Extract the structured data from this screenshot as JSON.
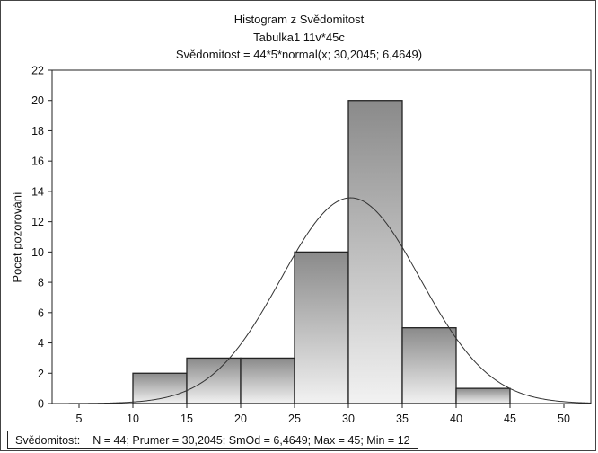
{
  "chart_data": {
    "type": "bar",
    "title": "Histogram z Svědomitost",
    "subtitle": "Tabulka1 11v*45c",
    "formula": "Svědomitost = 44*5*normal(x; 30,2045; 6,4649)",
    "xlabel": "",
    "ylabel": "Pocet pozorování",
    "xlim": [
      2.5,
      52.5
    ],
    "ylim": [
      0,
      22
    ],
    "x_ticks": [
      "5",
      "10",
      "15",
      "20",
      "25",
      "30",
      "35",
      "40",
      "45",
      "50"
    ],
    "y_ticks": [
      "0",
      "2",
      "4",
      "6",
      "8",
      "10",
      "12",
      "14",
      "16",
      "18",
      "20",
      "22"
    ],
    "bins": [
      {
        "from": 10,
        "to": 15,
        "count": 2
      },
      {
        "from": 15,
        "to": 20,
        "count": 3
      },
      {
        "from": 20,
        "to": 25,
        "count": 3
      },
      {
        "from": 25,
        "to": 30,
        "count": 10
      },
      {
        "from": 30,
        "to": 35,
        "count": 20
      },
      {
        "from": 35,
        "to": 40,
        "count": 5
      },
      {
        "from": 40,
        "to": 45,
        "count": 1
      }
    ],
    "normal_fit": {
      "n": 44,
      "bin_width": 5,
      "mean": 30.2045,
      "sd": 6.4649
    },
    "grid": false,
    "colors": {
      "bar_light": "#f2f2f2",
      "bar_dark": "#8a8a8a",
      "bar_stroke": "#222222",
      "curve": "#333333"
    }
  },
  "stats": {
    "variable": "Svědomitost:",
    "values": "N = 44; Prumer = 30,2045; SmOd = 6,4649; Max = 45; Min = 12"
  }
}
